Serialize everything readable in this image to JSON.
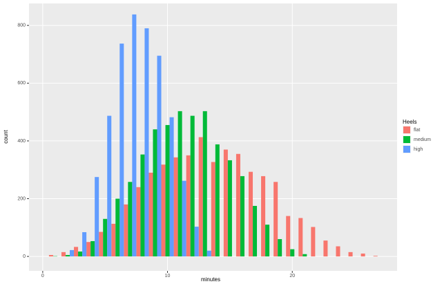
{
  "chart_data": {
    "type": "histogram",
    "xlabel": "minutes",
    "ylabel": "count",
    "legend_title": "Heels",
    "legend": "right",
    "bins": [
      0.5,
      1.5,
      2.5,
      3.5,
      4.5,
      5.5,
      6.5,
      7.5,
      8.5,
      9.5,
      10.5,
      11.5,
      12.5,
      13.5,
      14.5,
      15.5,
      16.5,
      17.5,
      18.5,
      19.5,
      20.5,
      21.5,
      22.5,
      23.5,
      24.5,
      25.5,
      26.5,
      27.5
    ],
    "series": [
      {
        "name": "flat",
        "color": "#F8766D",
        "values": [
          5,
          15,
          33,
          50,
          85,
          113,
          180,
          240,
          290,
          318,
          343,
          350,
          413,
          327,
          370,
          355,
          293,
          278,
          258,
          140,
          133,
          102,
          55,
          35,
          15,
          10,
          2
        ]
      },
      {
        "name": "medium",
        "color": "#00BA38",
        "values": [
          1,
          5,
          17,
          53,
          130,
          200,
          258,
          353,
          440,
          455,
          503,
          487,
          503,
          388,
          333,
          278,
          175,
          110,
          60,
          25,
          8,
          0,
          0,
          0,
          0,
          0,
          0
        ]
      },
      {
        "name": "high",
        "color": "#619CFF",
        "values": [
          0,
          22,
          84,
          275,
          487,
          737,
          838,
          790,
          695,
          482,
          262,
          103,
          20,
          0,
          0,
          0,
          0,
          0,
          0,
          0,
          0,
          0,
          0,
          0,
          0,
          0,
          0
        ]
      }
    ],
    "xlim": [
      -1.1,
      28.4
    ],
    "ylim": [
      -50,
      876
    ],
    "xticks": [
      0,
      10,
      20
    ],
    "yticks": [
      0,
      200,
      400,
      600,
      800
    ],
    "grid": true
  }
}
